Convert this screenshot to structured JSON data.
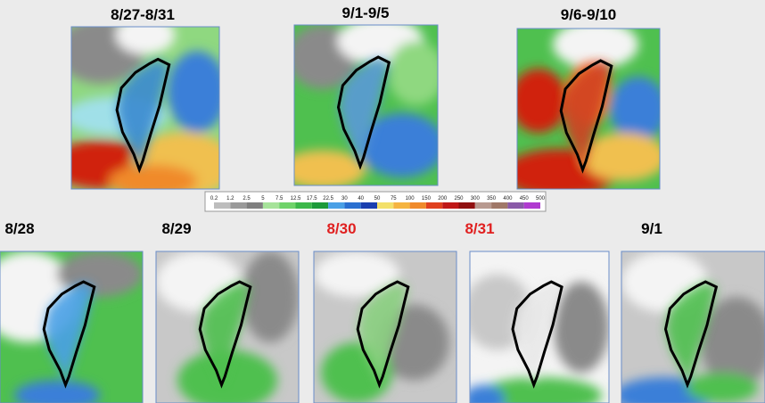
{
  "periods": [
    {
      "label": "8/27-8/31"
    },
    {
      "label": "9/1-9/5"
    },
    {
      "label": "9/6-9/10"
    }
  ],
  "legend": {
    "labels": [
      "0.2",
      "1.2",
      "2.5",
      "5",
      "7.5",
      "12.5",
      "17.5",
      "22.5",
      "30",
      "40",
      "50",
      "75",
      "100",
      "150",
      "200",
      "250",
      "300",
      "350",
      "400",
      "450",
      "500"
    ],
    "colors": [
      "#bdbdbd",
      "#9a9a9a",
      "#7f7f7f",
      "#a6e39a",
      "#6fd36a",
      "#3cb84a",
      "#1c9a3a",
      "#4aa0e6",
      "#2a6fd0",
      "#1a3fb0",
      "#f3e06a",
      "#f5b440",
      "#f08a2a",
      "#e0401e",
      "#c01818",
      "#901010",
      "#b89a90",
      "#a07868",
      "#8a5aa8",
      "#b03ad0"
    ]
  },
  "days": [
    {
      "label": "8/28",
      "highlight": false
    },
    {
      "label": "8/29",
      "highlight": false
    },
    {
      "label": "8/30",
      "highlight": true
    },
    {
      "label": "8/31",
      "highlight": true
    },
    {
      "label": "9/1",
      "highlight": false
    }
  ]
}
